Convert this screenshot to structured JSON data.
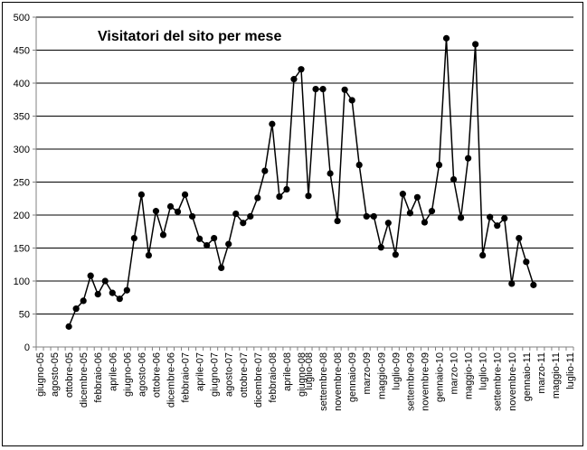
{
  "chart_data": {
    "type": "line",
    "title": "Visitatori del sito per mese",
    "xlabel": "",
    "ylabel": "",
    "ylim": [
      0,
      500
    ],
    "yticks": [
      0,
      50,
      100,
      150,
      200,
      250,
      300,
      350,
      400,
      450,
      500
    ],
    "grid": "horizontal",
    "legend": "none",
    "colors": {
      "line": "#000000",
      "grid": "#000000",
      "axis": "#808080"
    },
    "categories": [
      "giugno-05",
      "luglio-05",
      "agosto-05",
      "settembre-05",
      "ottobre-05",
      "novembre-05",
      "dicembre-05",
      "gennaio-06",
      "febbraio-06",
      "marzo-06",
      "aprile-06",
      "maggio-06",
      "giugno-06",
      "luglio-06",
      "agosto-06",
      "settembre-06",
      "ottobre-06",
      "novembre-06",
      "dicembre-06",
      "gennaio-07",
      "febbraio-07",
      "marzo-07",
      "aprile-07",
      "maggio-07",
      "giugno-07",
      "luglio-07",
      "agosto-07",
      "settembre-07",
      "ottobre-07",
      "novembre-07",
      "dicembre-07",
      "gennaio-08",
      "febbraio-08",
      "marzo-08",
      "aprile-08",
      "maggio-08",
      "giugno-08",
      "luglio-08",
      "agosto-08",
      "settembre-08",
      "ottobre-08",
      "novembre-08",
      "dicembre-08",
      "gennaio-09",
      "febbraio-09",
      "marzo-09",
      "aprile-09",
      "maggio-09",
      "giugno-09",
      "luglio-09",
      "agosto-09",
      "settembre-09",
      "ottobre-09",
      "novembre-09",
      "dicembre-09",
      "gennaio-10",
      "febbraio-10",
      "marzo-10",
      "aprile-10",
      "maggio-10",
      "giugno-10",
      "luglio-10",
      "agosto-10",
      "settembre-10",
      "ottobre-10",
      "novembre-10",
      "dicembre-10",
      "gennaio-11",
      "febbraio-11",
      "marzo-11",
      "aprile-11",
      "maggio-11",
      "giugno-11",
      "luglio-11"
    ],
    "xtick_labels": [
      "giugno-05",
      "agosto-05",
      "ottobre-05",
      "dicembre-05",
      "febbraio-06",
      "aprile-06",
      "giugno-06",
      "agosto-06",
      "ottobre-06",
      "dicembre-06",
      "febbraio-07",
      "aprile-07",
      "giugno-07",
      "agosto-07",
      "ottobre-07",
      "dicembre-07",
      "febbraio-08",
      "aprile-08",
      "giugno-08",
      "luglio-08",
      "settembre-08",
      "novembre-08",
      "gennaio-09",
      "marzo-09",
      "maggio-09",
      "luglio-09",
      "settembre-09",
      "novembre-09",
      "gennaio-10",
      "marzo-10",
      "maggio-10",
      "luglio-10",
      "settembre-10",
      "novembre-10",
      "gennaio-11",
      "marzo-11",
      "maggio-11",
      "luglio-11"
    ],
    "series": [
      {
        "values": [
          null,
          null,
          null,
          null,
          31,
          58,
          70,
          108,
          80,
          100,
          82,
          73,
          86,
          165,
          231,
          139,
          206,
          170,
          213,
          205,
          231,
          198,
          164,
          154,
          165,
          120,
          156,
          202,
          188,
          198,
          226,
          267,
          338,
          228,
          239,
          406,
          421,
          229,
          391,
          391,
          263,
          191,
          390,
          374,
          276,
          198,
          198,
          151,
          188,
          140,
          232,
          203,
          227,
          189,
          206,
          276,
          468,
          254,
          196,
          286,
          459,
          139,
          197,
          184,
          195,
          96,
          165,
          129,
          94,
          null,
          null,
          null,
          null,
          null
        ]
      }
    ]
  }
}
